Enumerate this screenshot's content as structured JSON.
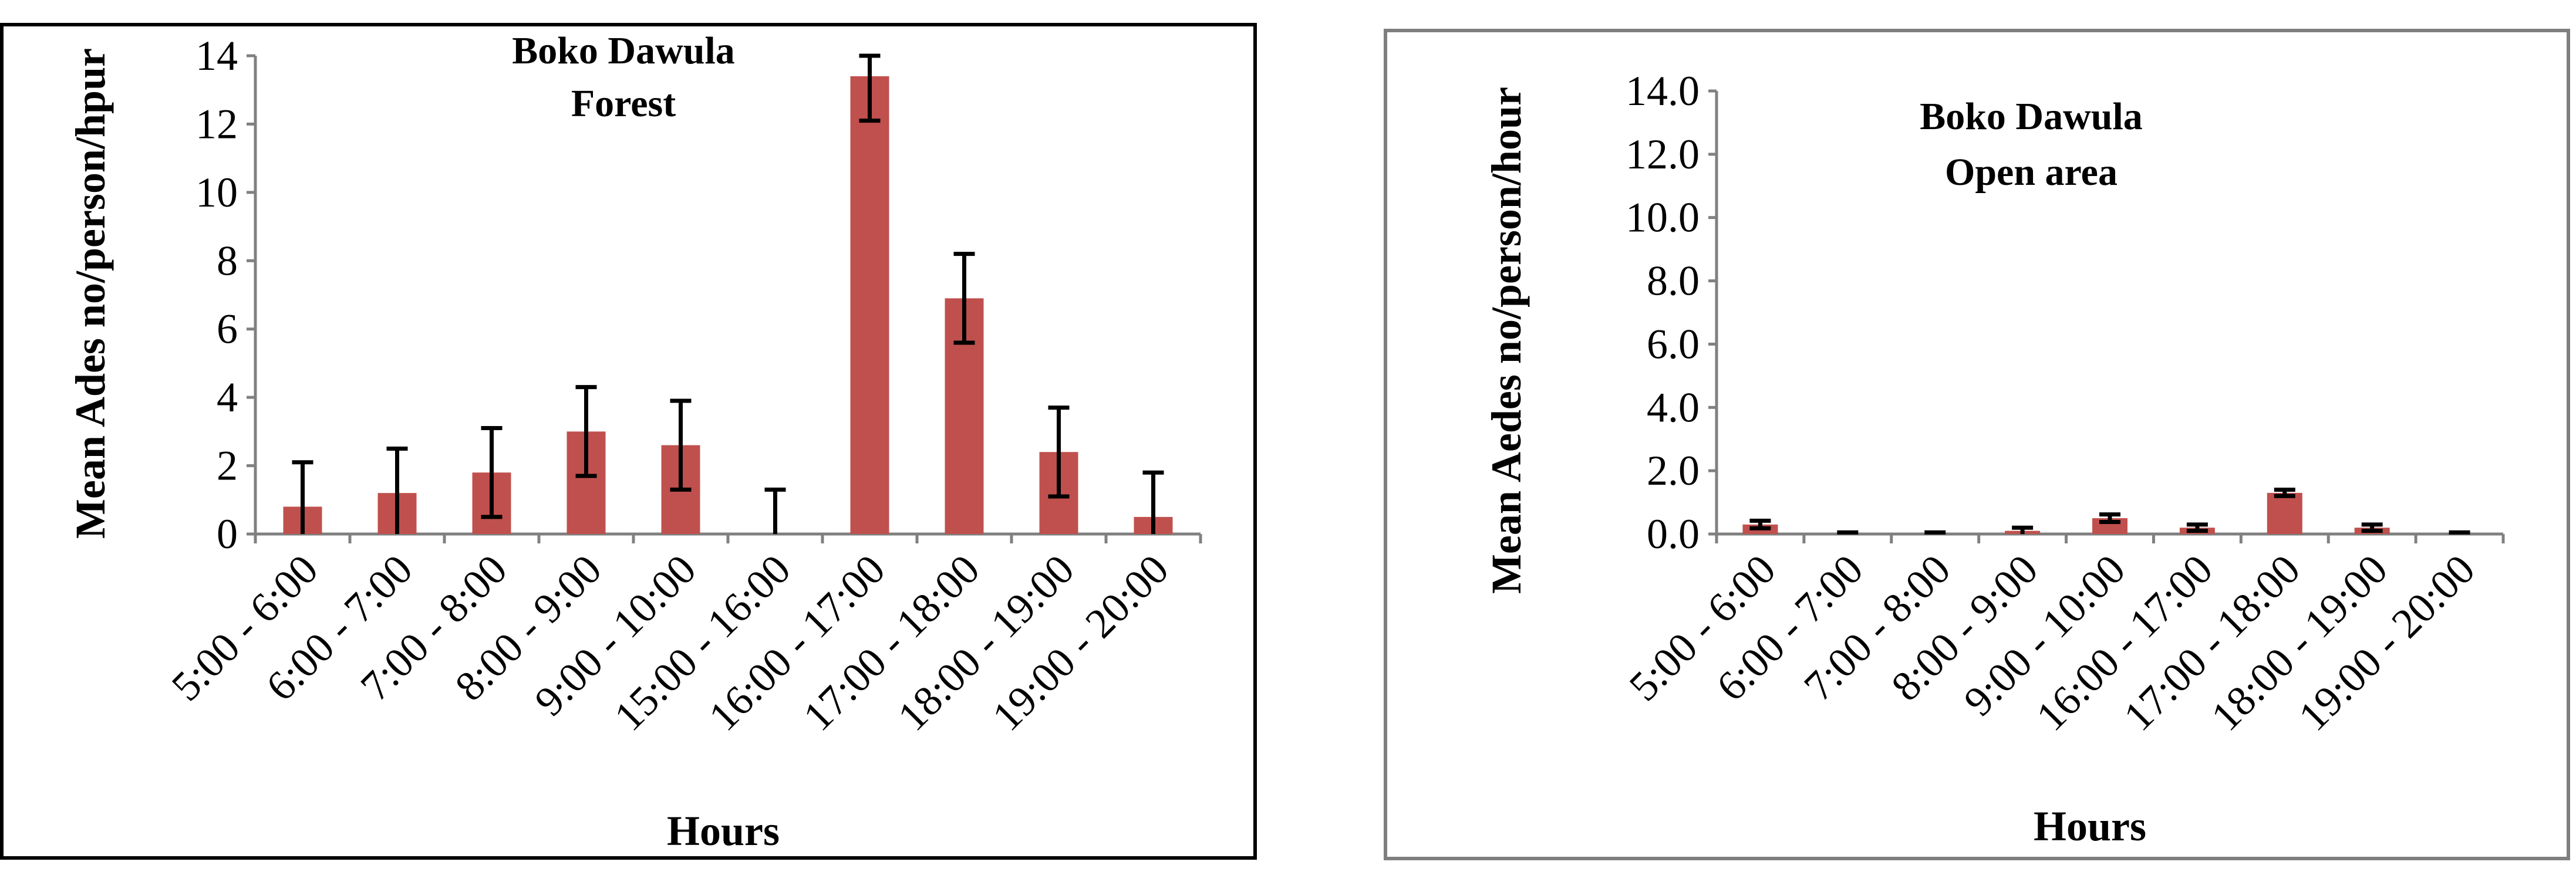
{
  "chart_data": [
    {
      "type": "bar",
      "title": [
        "Boko Dawula",
        "Forest"
      ],
      "xlabel": "Hours",
      "ylabel": "Mean Ades no/person/hpur",
      "categories": [
        "5:00 - 6:00",
        "6:00 - 7:00",
        "7:00 - 8:00",
        "8:00 - 9:00",
        "9:00 - 10:00",
        "15:00 - 16:00",
        "16:00 - 17:00",
        "17:00 - 18:00",
        "18:00 - 19:00",
        "19:00 - 20:00"
      ],
      "values": [
        0.8,
        1.2,
        1.8,
        3.0,
        2.6,
        0.0,
        13.4,
        6.9,
        2.4,
        0.5
      ],
      "error_bars": [
        1.3,
        1.3,
        1.3,
        1.3,
        1.3,
        1.3,
        1.3,
        1.3,
        1.3,
        1.3
      ],
      "ylim": [
        0,
        14
      ],
      "yticks": [
        0,
        2,
        4,
        6,
        8,
        10,
        12,
        14
      ],
      "ytick_labels": [
        "0",
        "2",
        "4",
        "6",
        "8",
        "10",
        "12",
        "14"
      ],
      "bar_color": "#c0504d",
      "grid": false,
      "legend": "none"
    },
    {
      "type": "bar",
      "title": [
        "Boko Dawula",
        "Open area"
      ],
      "xlabel": "Hours",
      "ylabel": "Mean Aedes no/person/hour",
      "categories": [
        "5:00 - 6:00",
        "6:00 - 7:00",
        "7:00 - 8:00",
        "8:00 - 9:00",
        "9:00 - 10:00",
        "16:00 - 17:00",
        "17:00 - 18:00",
        "18:00 - 19:00",
        "19:00 - 20:00"
      ],
      "values": [
        0.3,
        0.0,
        0.0,
        0.1,
        0.5,
        0.2,
        1.3,
        0.2,
        0.0
      ],
      "error_bars": [
        0.12,
        0.05,
        0.05,
        0.1,
        0.12,
        0.1,
        0.1,
        0.1,
        0.05
      ],
      "ylim": [
        0,
        14
      ],
      "yticks": [
        0,
        2,
        4,
        6,
        8,
        10,
        12,
        14
      ],
      "ytick_labels": [
        "0.0",
        "2.0",
        "4.0",
        "6.0",
        "8.0",
        "10.0",
        "12.0",
        "14.0"
      ],
      "bar_color": "#c0504d",
      "grid": false,
      "legend": "none"
    }
  ]
}
